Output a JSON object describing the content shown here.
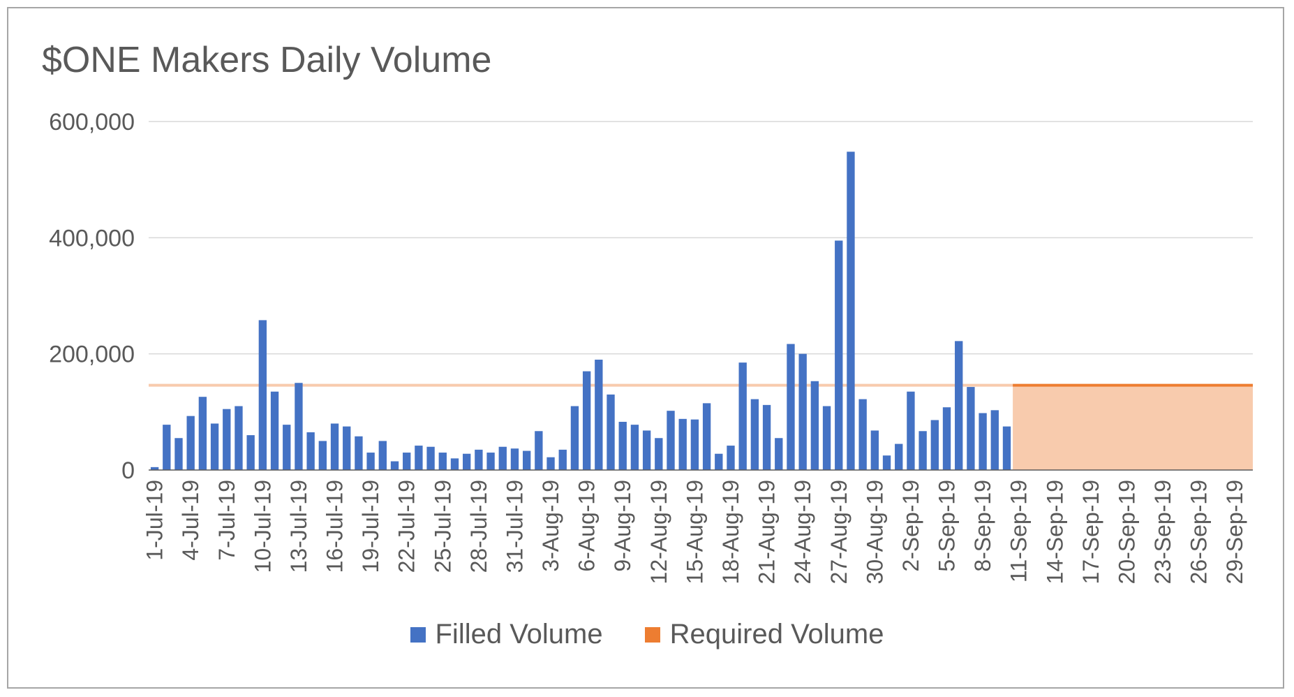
{
  "chart_data": {
    "type": "bar",
    "title": "$ONE Makers Daily Volume",
    "xlabel": "",
    "ylabel": "",
    "ylim": [
      0,
      600000
    ],
    "yticks": [
      0,
      200000,
      400000,
      600000
    ],
    "ytick_labels": [
      "0",
      "200,000",
      "400,000",
      "600,000"
    ],
    "grid": true,
    "legend_position": "bottom",
    "num_days": 92,
    "x_tick_labels": [
      "1-Jul-19",
      "4-Jul-19",
      "7-Jul-19",
      "10-Jul-19",
      "13-Jul-19",
      "16-Jul-19",
      "19-Jul-19",
      "22-Jul-19",
      "25-Jul-19",
      "28-Jul-19",
      "31-Jul-19",
      "3-Aug-19",
      "6-Aug-19",
      "9-Aug-19",
      "12-Aug-19",
      "15-Aug-19",
      "18-Aug-19",
      "21-Aug-19",
      "24-Aug-19",
      "27-Aug-19",
      "30-Aug-19",
      "2-Sep-19",
      "5-Sep-19",
      "8-Sep-19",
      "11-Sep-19",
      "14-Sep-19",
      "17-Sep-19",
      "20-Sep-19",
      "23-Sep-19",
      "26-Sep-19",
      "29-Sep-19"
    ],
    "x_tick_every": 3,
    "series": [
      {
        "name": "Filled Volume",
        "color": "#4472c4",
        "values": [
          5000,
          78000,
          55000,
          93000,
          126000,
          80000,
          105000,
          110000,
          60000,
          258000,
          135000,
          78000,
          150000,
          65000,
          50000,
          80000,
          75000,
          58000,
          30000,
          50000,
          15000,
          30000,
          42000,
          40000,
          30000,
          20000,
          28000,
          35000,
          30000,
          40000,
          37000,
          33000,
          67000,
          22000,
          35000,
          110000,
          170000,
          190000,
          130000,
          83000,
          78000,
          68000,
          55000,
          102000,
          88000,
          87000,
          115000,
          28000,
          42000,
          185000,
          122000,
          112000,
          55000,
          217000,
          200000,
          153000,
          110000,
          395000,
          548000,
          122000,
          68000,
          25000,
          45000,
          135000,
          67000,
          86000,
          108000,
          222000,
          143000,
          98000,
          103000,
          75000
        ]
      },
      {
        "name": "Required Volume",
        "color": "#ed7d31",
        "value": 146000,
        "faded_color": "#f8cbad",
        "area_start_index": 72
      }
    ]
  }
}
